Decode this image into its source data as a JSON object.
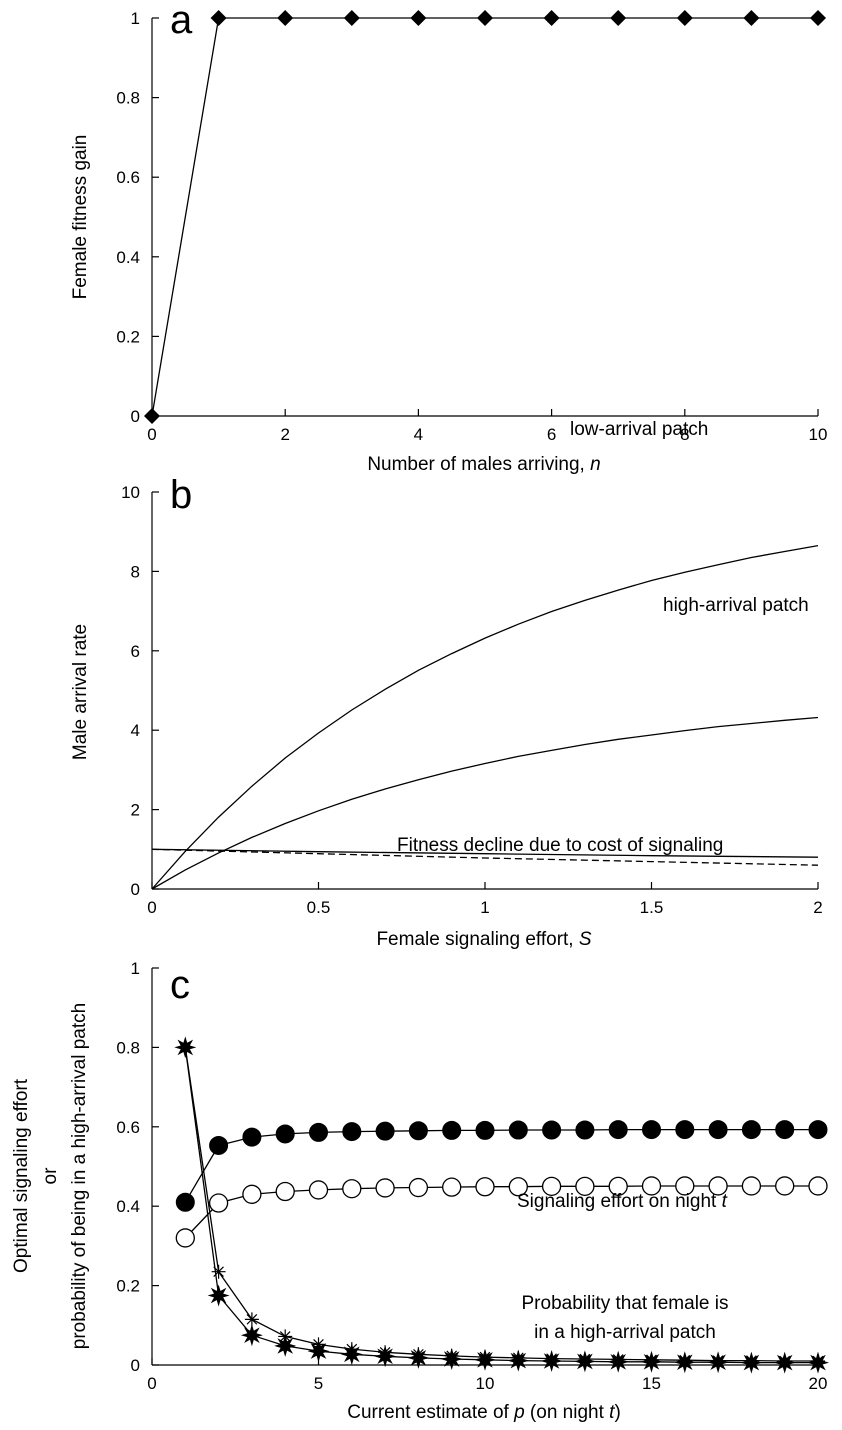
{
  "chart_data": [
    {
      "panel": "a",
      "type": "line",
      "xlabel": "Number of males arriving, ",
      "xlabel_italic": "n",
      "ylabel": "Female fitness gain",
      "xlim": [
        0,
        10
      ],
      "ylim": [
        0,
        1
      ],
      "xticks": [
        "0",
        "2",
        "4",
        "6",
        "8",
        "10"
      ],
      "yticks": [
        "0",
        "0.2",
        "0.4",
        "0.6",
        "0.8",
        "1"
      ],
      "series": [
        {
          "marker": "diamond-filled",
          "x": [
            0,
            1,
            2,
            3,
            4,
            5,
            6,
            7,
            8,
            9,
            10
          ],
          "y": [
            0,
            1,
            1,
            1,
            1,
            1,
            1,
            1,
            1,
            1,
            1
          ]
        }
      ]
    },
    {
      "panel": "b",
      "type": "line",
      "xlabel": "Female signaling effort, ",
      "xlabel_italic": "S",
      "ylabel": "Male arrival rate",
      "xlim": [
        0,
        2
      ],
      "ylim": [
        0,
        10
      ],
      "xticks": [
        "0",
        "0.5",
        "1",
        "1.5",
        "2"
      ],
      "yticks": [
        "0",
        "2",
        "4",
        "6",
        "8",
        "10"
      ],
      "annotations": [
        "high-arrival patch",
        "low-arrival patch",
        "Fitness decline due to cost of signaling"
      ],
      "series": [
        {
          "label": "high-arrival patch",
          "style": "solid",
          "x": [
            0,
            0.1,
            0.2,
            0.3,
            0.4,
            0.5,
            0.6,
            0.7,
            0.8,
            0.9,
            1.0,
            1.1,
            1.2,
            1.3,
            1.4,
            1.5,
            1.6,
            1.7,
            1.8,
            1.9,
            2.0
          ],
          "y": [
            0,
            0.95,
            1.81,
            2.59,
            3.3,
            3.93,
            4.51,
            5.03,
            5.51,
            5.93,
            6.32,
            6.67,
            6.99,
            7.27,
            7.53,
            7.77,
            7.98,
            8.17,
            8.35,
            8.5,
            8.65
          ]
        },
        {
          "label": "low-arrival patch",
          "style": "solid",
          "x": [
            0,
            0.1,
            0.2,
            0.3,
            0.4,
            0.5,
            0.6,
            0.7,
            0.8,
            0.9,
            1.0,
            1.1,
            1.2,
            1.3,
            1.4,
            1.5,
            1.6,
            1.7,
            1.8,
            1.9,
            2.0
          ],
          "y": [
            0,
            0.48,
            0.91,
            1.3,
            1.65,
            1.97,
            2.26,
            2.52,
            2.75,
            2.97,
            3.16,
            3.34,
            3.49,
            3.64,
            3.77,
            3.88,
            3.99,
            4.09,
            4.17,
            4.25,
            4.32
          ]
        },
        {
          "label": "Fitness decline due to cost of signaling",
          "style": "solid",
          "x": [
            0,
            0.5,
            1.0,
            1.5,
            2.0
          ],
          "y": [
            1.0,
            0.94,
            0.89,
            0.84,
            0.8
          ]
        },
        {
          "style": "dashed",
          "x": [
            0,
            0.5,
            1.0,
            1.5,
            2.0
          ],
          "y": [
            1.0,
            0.89,
            0.78,
            0.69,
            0.6
          ]
        }
      ]
    },
    {
      "panel": "c",
      "type": "line",
      "xlabel": "Current estimate of ",
      "xlabel_italic": "p",
      "xlabel_tail": " (on night ",
      "xlabel_tail_italic": "t",
      "xlabel_end": ")",
      "ylabel_lines": [
        "Optimal signaling effort",
        "or",
        "probability of being in a high-arrival patch"
      ],
      "xlim": [
        0,
        20
      ],
      "ylim": [
        0,
        1
      ],
      "xticks": [
        "0",
        "5",
        "10",
        "15",
        "20"
      ],
      "yticks": [
        "0",
        "0.2",
        "0.4",
        "0.6",
        "0.8",
        "1"
      ],
      "annotations": {
        "signaling_prefix": "Signaling effort on night ",
        "signaling_italic": "t",
        "probability_line1": "Probability that female is",
        "probability_line2": "in a high-arrival patch"
      },
      "series": [
        {
          "marker": "circle-filled",
          "x": [
            1,
            2,
            3,
            4,
            5,
            6,
            7,
            8,
            9,
            10,
            11,
            12,
            13,
            14,
            15,
            16,
            17,
            18,
            19,
            20
          ],
          "y": [
            0.41,
            0.553,
            0.574,
            0.582,
            0.586,
            0.588,
            0.589,
            0.59,
            0.591,
            0.591,
            0.592,
            0.592,
            0.592,
            0.593,
            0.593,
            0.593,
            0.593,
            0.593,
            0.593,
            0.593
          ]
        },
        {
          "marker": "circle-open",
          "x": [
            1,
            2,
            3,
            4,
            5,
            6,
            7,
            8,
            9,
            10,
            11,
            12,
            13,
            14,
            15,
            16,
            17,
            18,
            19,
            20
          ],
          "y": [
            0.32,
            0.408,
            0.43,
            0.437,
            0.441,
            0.444,
            0.446,
            0.447,
            0.448,
            0.449,
            0.449,
            0.45,
            0.45,
            0.45,
            0.451,
            0.451,
            0.451,
            0.451,
            0.451,
            0.451
          ]
        },
        {
          "marker": "asterisk",
          "x": [
            1,
            2,
            3,
            4,
            5,
            6,
            7,
            8,
            9,
            10,
            11,
            12,
            13,
            14,
            15,
            16,
            17,
            18,
            19,
            20
          ],
          "y": [
            0.8,
            0.235,
            0.115,
            0.072,
            0.052,
            0.04,
            0.032,
            0.027,
            0.023,
            0.02,
            0.018,
            0.016,
            0.015,
            0.014,
            0.013,
            0.012,
            0.011,
            0.011,
            0.01,
            0.01
          ]
        },
        {
          "marker": "star-filled",
          "x": [
            1,
            2,
            3,
            4,
            5,
            6,
            7,
            8,
            9,
            10,
            11,
            12,
            13,
            14,
            15,
            16,
            17,
            18,
            19,
            20
          ],
          "y": [
            0.8,
            0.175,
            0.075,
            0.048,
            0.035,
            0.027,
            0.022,
            0.018,
            0.015,
            0.013,
            0.011,
            0.01,
            0.009,
            0.008,
            0.008,
            0.007,
            0.007,
            0.006,
            0.006,
            0.006
          ]
        }
      ]
    }
  ]
}
